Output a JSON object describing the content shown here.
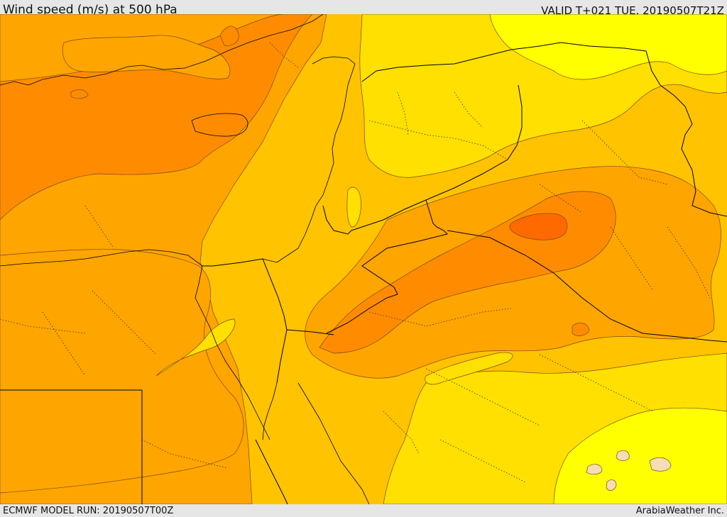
{
  "header": {
    "title": "Wind speed (m/s) at 500 hPa",
    "valid": "VALID T+021 TUE. 20190507T21Z"
  },
  "footer": {
    "model_run": "ECMWF MODEL RUN: 20190507T00Z",
    "credit": "ArabiaWeather Inc."
  },
  "map": {
    "variable": "wind speed",
    "level": "500 hPa",
    "shading_colors": [
      "#ffff00",
      "#ffe000",
      "#ffc300",
      "#ffa500",
      "#ff8c00",
      "#ff7000",
      "#ff5a00",
      "#f5deb3"
    ],
    "border_color": "#000000",
    "contour_color": "#7a4a1a"
  }
}
